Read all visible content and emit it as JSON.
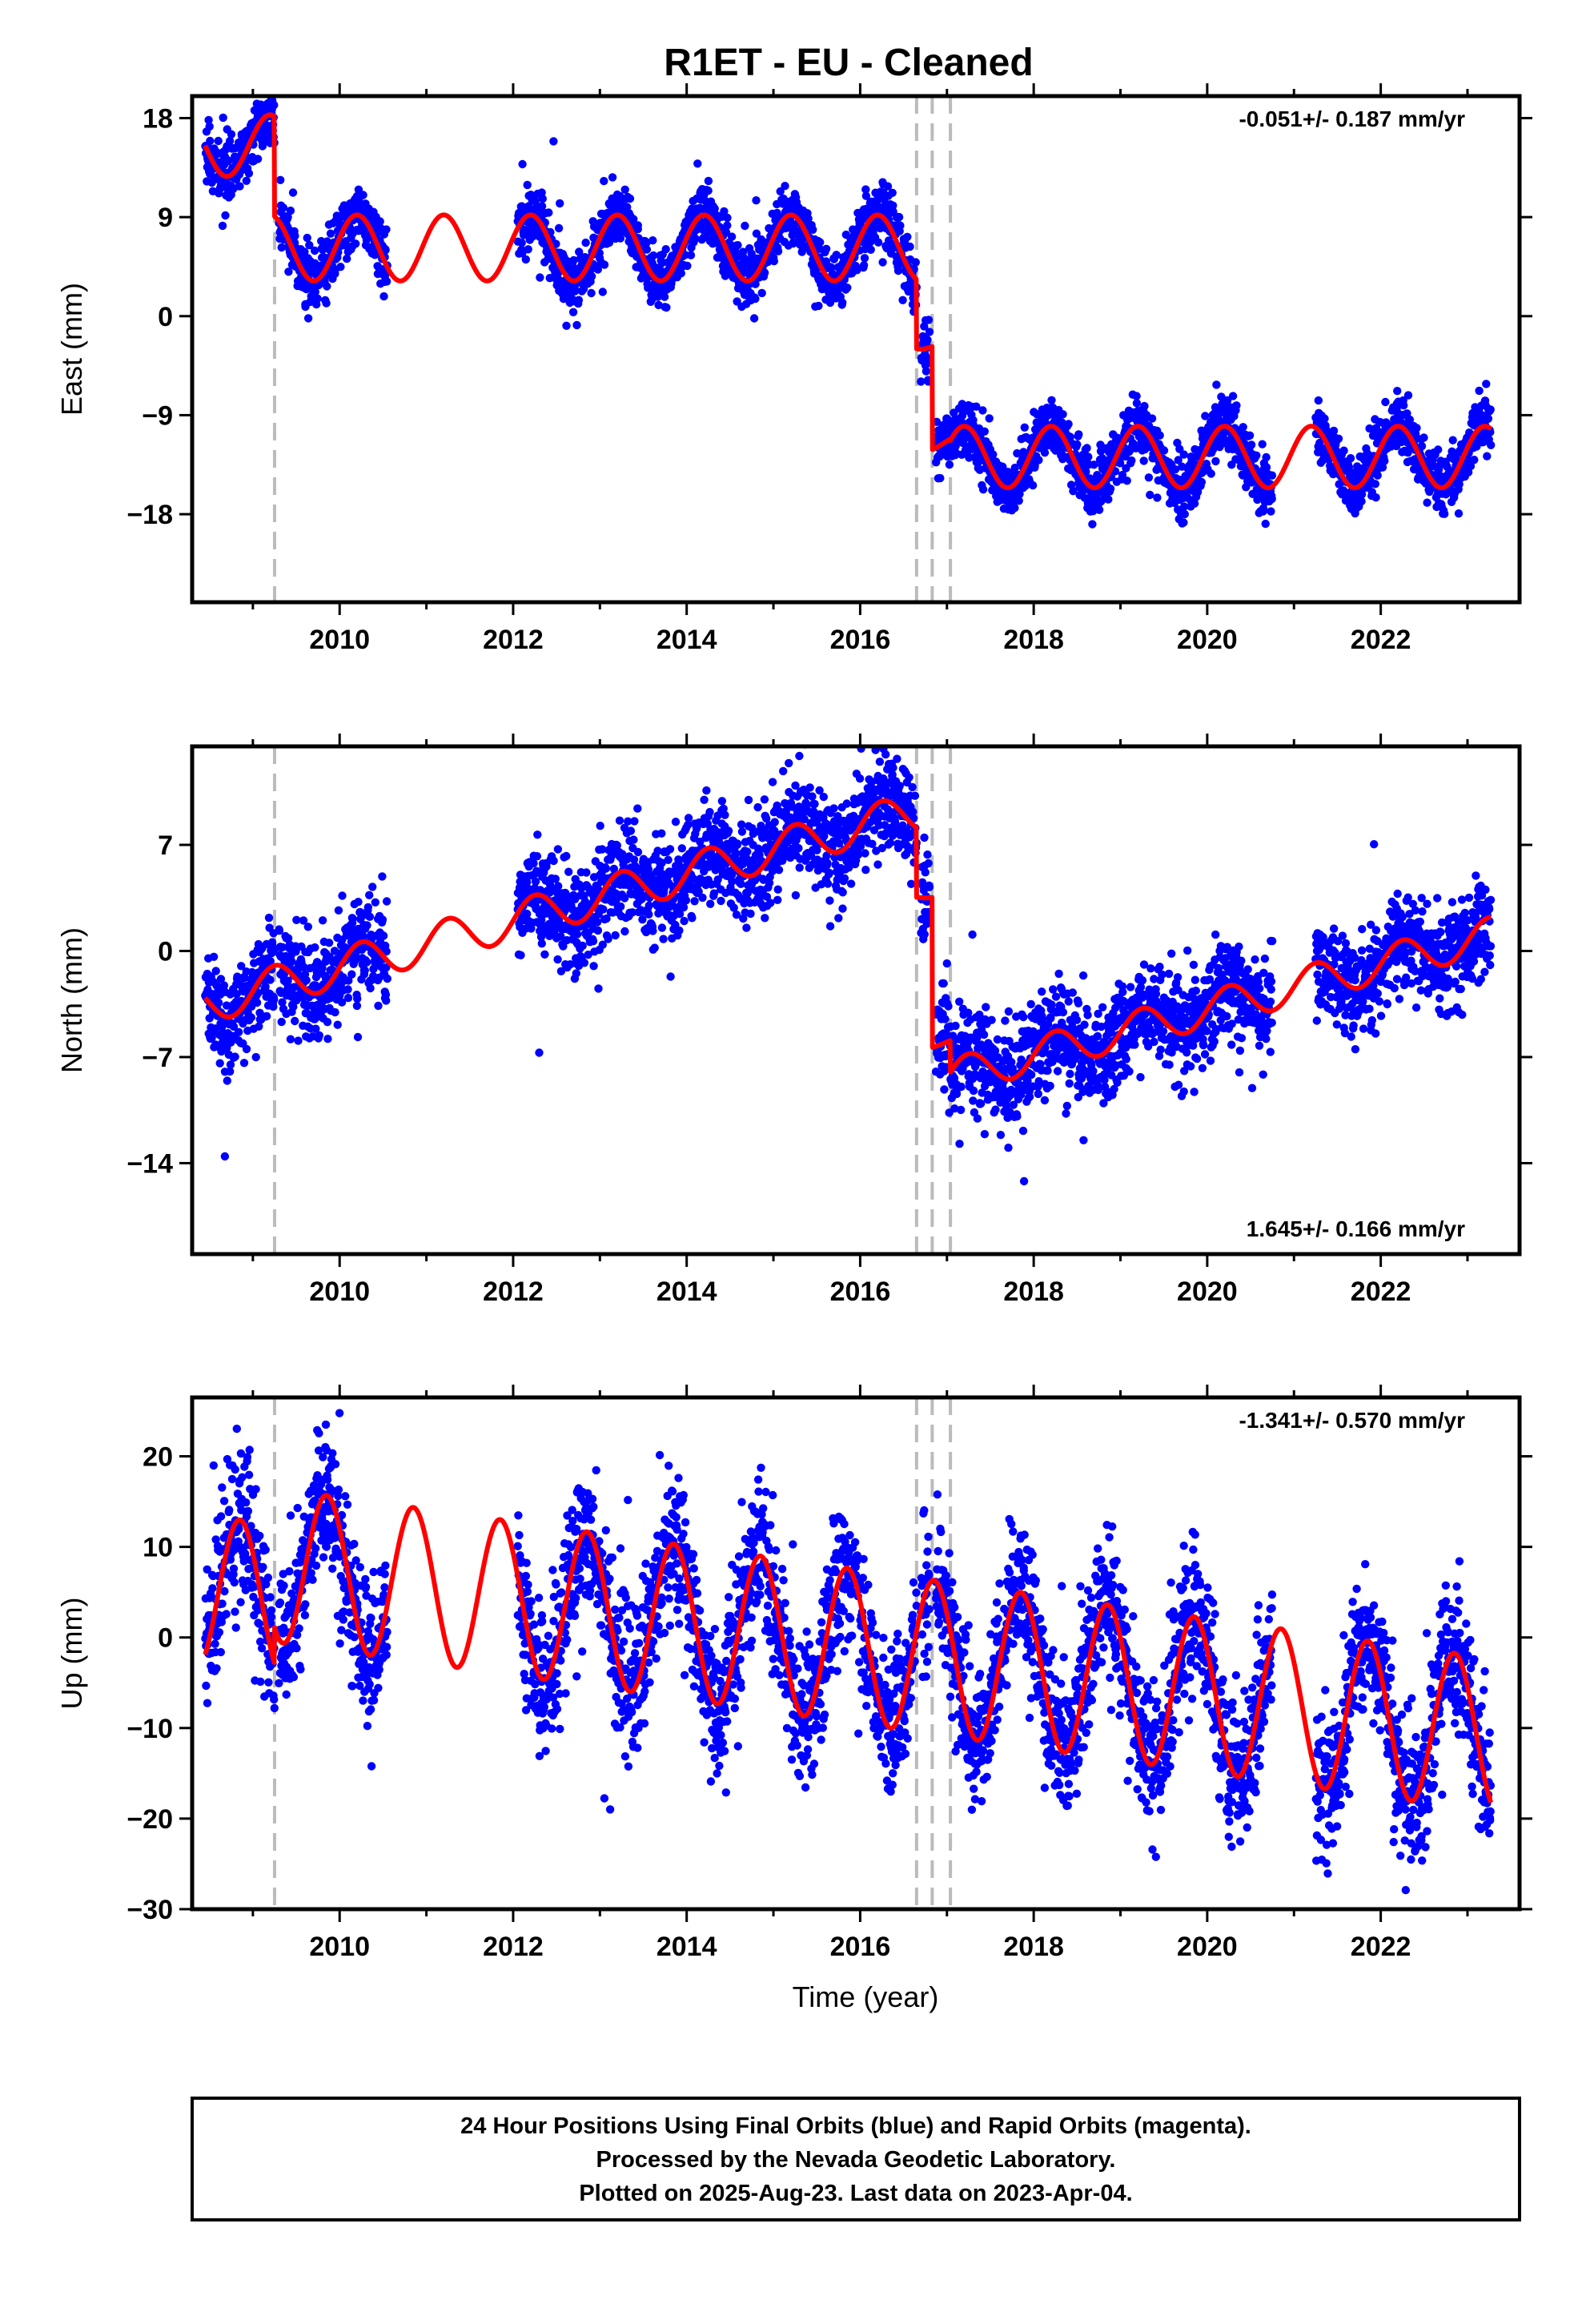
{
  "title": "R1ET  - EU - Cleaned",
  "footer": {
    "lines": [
      "24 Hour Positions Using Final Orbits (blue) and Rapid Orbits (magenta).",
      "Processed by the Nevada Geodetic Laboratory.",
      "Plotted on 2025-Aug-23. Last data on 2023-Apr-04."
    ]
  },
  "colors": {
    "data_points": "#0000ff",
    "model_line": "#ff0000",
    "step_lines": "#bbbbbb",
    "frame": "#000000"
  },
  "chart_data": [
    {
      "type": "scatter",
      "component": "east",
      "ylabel": "East (mm)",
      "xlabel": "",
      "xlim": [
        2008.3,
        2023.6
      ],
      "ylim": [
        -26,
        20
      ],
      "x_ticks": [
        2010,
        2012,
        2014,
        2016,
        2018,
        2020,
        2022
      ],
      "y_ticks": [
        18,
        9,
        0,
        -9,
        -18
      ],
      "y_tick_labels": [
        "18",
        "9",
        "0",
        "−9",
        "−18"
      ],
      "rate_label": "-0.051+/- 0.187 mm/yr",
      "rate_position": "top-right",
      "step_epochs": [
        2009.25,
        2016.65,
        2016.83,
        2017.04
      ],
      "model": {
        "segments": [
          {
            "start": 2008.45,
            "end": 2009.25,
            "offset": 15.5,
            "trend": 0.0,
            "amp": 2.8,
            "phase": 2008.95
          },
          {
            "start": 2009.25,
            "end": 2016.65,
            "offset": 6.2,
            "trend": 0.0,
            "amp": 3.0,
            "phase": 2008.95
          },
          {
            "start": 2016.65,
            "end": 2016.83,
            "offset": -2.2,
            "trend": 0.0,
            "amp": 0.8,
            "phase": 2008.95
          },
          {
            "start": 2016.83,
            "end": 2017.04,
            "offset": -11.6,
            "trend": 0.0,
            "amp": 0.8,
            "phase": 2008.95
          },
          {
            "start": 2017.04,
            "end": 2023.27,
            "offset": -12.8,
            "trend": 0.0,
            "amp": 2.8,
            "phase": 2008.95
          }
        ]
      },
      "observations": {
        "intervals": [
          [
            2008.45,
            2009.25
          ],
          [
            2009.3,
            2010.55
          ],
          [
            2012.05,
            2016.65
          ],
          [
            2016.7,
            2016.8
          ],
          [
            2016.87,
            2020.75
          ],
          [
            2021.25,
            2023.27
          ]
        ],
        "noise_mm": 1.3,
        "count": 3600
      }
    },
    {
      "type": "scatter",
      "component": "north",
      "ylabel": "North (mm)",
      "xlabel": "",
      "xlim": [
        2008.3,
        2023.6
      ],
      "ylim": [
        -20,
        13.5
      ],
      "x_ticks": [
        2010,
        2012,
        2014,
        2016,
        2018,
        2020,
        2022
      ],
      "y_ticks": [
        7,
        0,
        -7,
        -14
      ],
      "y_tick_labels": [
        "7",
        "0",
        "−7",
        "−14"
      ],
      "rate_label": "1.645+/- 0.166 mm/yr",
      "rate_position": "bottom-right",
      "step_epochs": [
        2009.25,
        2016.65,
        2016.83,
        2017.04
      ],
      "model": {
        "segments": [
          {
            "start": 2008.45,
            "end": 2016.65,
            "offset": -3.5,
            "trend": 1.55,
            "amp": 1.3,
            "phase": 2009.0,
            "t0": 2008.45
          },
          {
            "start": 2016.65,
            "end": 2016.83,
            "offset": 3.8,
            "trend": 0.0,
            "amp": 0.3,
            "phase": 2009.0,
            "t0": 2016.65
          },
          {
            "start": 2016.83,
            "end": 2017.04,
            "offset": -6.0,
            "trend": 0.0,
            "amp": 0.4,
            "phase": 2009.0,
            "t0": 2016.83
          },
          {
            "start": 2017.04,
            "end": 2023.27,
            "offset": -8.3,
            "trend": 1.5,
            "amp": 1.2,
            "phase": 2009.0,
            "t0": 2017.04
          }
        ]
      },
      "observations": {
        "intervals": [
          [
            2008.45,
            2009.25
          ],
          [
            2009.3,
            2010.55
          ],
          [
            2012.05,
            2016.65
          ],
          [
            2016.7,
            2016.8
          ],
          [
            2016.87,
            2020.75
          ],
          [
            2021.25,
            2023.27
          ]
        ],
        "noise_mm": 1.6,
        "count": 3600
      }
    },
    {
      "type": "scatter",
      "component": "up",
      "ylabel": "Up (mm)",
      "xlabel": "Time (year)",
      "xlim": [
        2008.3,
        2023.6
      ],
      "ylim": [
        -30,
        26.5
      ],
      "x_ticks": [
        2010,
        2012,
        2014,
        2016,
        2018,
        2020,
        2022
      ],
      "y_ticks": [
        20,
        10,
        0,
        -10,
        -20,
        -30
      ],
      "y_tick_labels": [
        "20",
        "10",
        "0",
        "−10",
        "−20",
        "−30"
      ],
      "rate_label": "-1.341+/- 0.570 mm/yr",
      "rate_position": "top-right",
      "step_epochs": [
        2009.25,
        2016.65,
        2016.83,
        2017.04
      ],
      "model": {
        "segments": [
          {
            "start": 2008.45,
            "end": 2009.25,
            "offset": 5.0,
            "trend": -1.3,
            "amp": 8.5,
            "phase": 2008.6,
            "t0": 2008.45
          },
          {
            "start": 2009.25,
            "end": 2023.27,
            "offset": 8.0,
            "trend": -1.34,
            "amp": 8.5,
            "phase": 2008.6,
            "t0": 2009.25
          }
        ]
      },
      "observations": {
        "intervals": [
          [
            2008.45,
            2009.25
          ],
          [
            2009.3,
            2010.55
          ],
          [
            2012.05,
            2016.65
          ],
          [
            2016.7,
            2016.8
          ],
          [
            2016.87,
            2020.75
          ],
          [
            2021.25,
            2023.27
          ]
        ],
        "noise_mm": 4.0,
        "count": 3600
      }
    }
  ]
}
